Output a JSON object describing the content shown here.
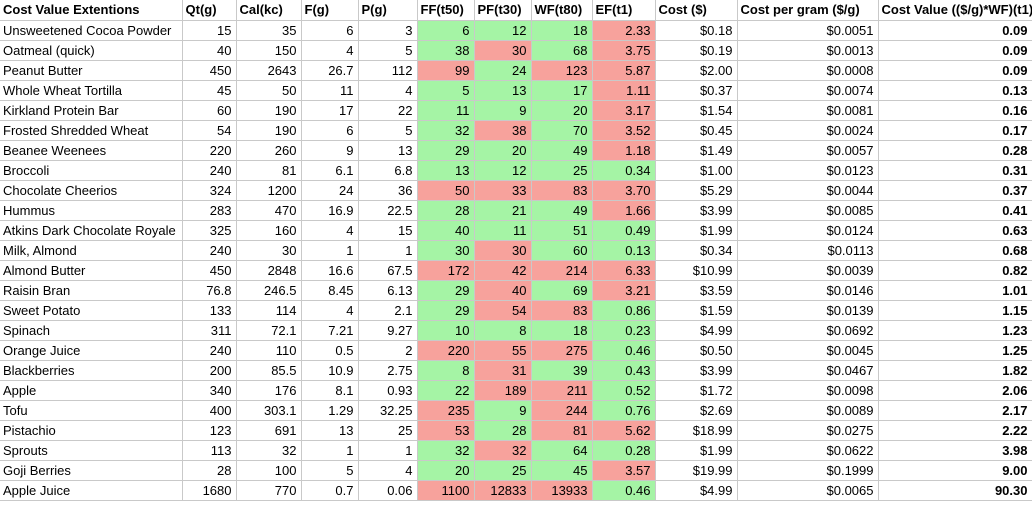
{
  "table": {
    "title": "Cost Value Extentions",
    "colors": {
      "good": "#a5f4a5",
      "bad": "#f7a29c",
      "gridline": "#c9c9c9"
    },
    "headers": [
      "Cost Value Extentions",
      "Qt(g)",
      "Cal(kc)",
      "F(g)",
      "P(g)",
      "FF(t50)",
      "PF(t30)",
      "WF(t80)",
      "EF(t1)",
      "Cost ($)",
      "Cost per gram ($/g)",
      "Cost Value (($/g)*WF)(t1)"
    ],
    "rows": [
      {
        "name": "Unsweetened Cocoa Powder",
        "qt": "15",
        "cal": "35",
        "f": "6",
        "p": "3",
        "ff": "6",
        "pf": "12",
        "wf": "18",
        "ef": "2.33",
        "cost": "$0.18",
        "cost_per_gram": "$0.0051",
        "cost_value": "0.09",
        "flags": "gggr"
      },
      {
        "name": "Oatmeal (quick)",
        "qt": "40",
        "cal": "150",
        "f": "4",
        "p": "5",
        "ff": "38",
        "pf": "30",
        "wf": "68",
        "ef": "3.75",
        "cost": "$0.19",
        "cost_per_gram": "$0.0013",
        "cost_value": "0.09",
        "flags": "grgr"
      },
      {
        "name": "Peanut Butter",
        "qt": "450",
        "cal": "2643",
        "f": "26.7",
        "p": "112",
        "ff": "99",
        "pf": "24",
        "wf": "123",
        "ef": "5.87",
        "cost": "$2.00",
        "cost_per_gram": "$0.0008",
        "cost_value": "0.09",
        "flags": "rgrr"
      },
      {
        "name": "Whole Wheat Tortilla",
        "qt": "45",
        "cal": "50",
        "f": "11",
        "p": "4",
        "ff": "5",
        "pf": "13",
        "wf": "17",
        "ef": "1.11",
        "cost": "$0.37",
        "cost_per_gram": "$0.0074",
        "cost_value": "0.13",
        "flags": "gggr"
      },
      {
        "name": "Kirkland Protein Bar",
        "qt": "60",
        "cal": "190",
        "f": "17",
        "p": "22",
        "ff": "11",
        "pf": "9",
        "wf": "20",
        "ef": "3.17",
        "cost": "$1.54",
        "cost_per_gram": "$0.0081",
        "cost_value": "0.16",
        "flags": "gggr"
      },
      {
        "name": "Frosted Shredded Wheat",
        "qt": "54",
        "cal": "190",
        "f": "6",
        "p": "5",
        "ff": "32",
        "pf": "38",
        "wf": "70",
        "ef": "3.52",
        "cost": "$0.45",
        "cost_per_gram": "$0.0024",
        "cost_value": "0.17",
        "flags": "grgr"
      },
      {
        "name": "Beanee Weenees",
        "qt": "220",
        "cal": "260",
        "f": "9",
        "p": "13",
        "ff": "29",
        "pf": "20",
        "wf": "49",
        "ef": "1.18",
        "cost": "$1.49",
        "cost_per_gram": "$0.0057",
        "cost_value": "0.28",
        "flags": "gggr"
      },
      {
        "name": "Broccoli",
        "qt": "240",
        "cal": "81",
        "f": "6.1",
        "p": "6.8",
        "ff": "13",
        "pf": "12",
        "wf": "25",
        "ef": "0.34",
        "cost": "$1.00",
        "cost_per_gram": "$0.0123",
        "cost_value": "0.31",
        "flags": "gggg"
      },
      {
        "name": "Chocolate Cheerios",
        "qt": "324",
        "cal": "1200",
        "f": "24",
        "p": "36",
        "ff": "50",
        "pf": "33",
        "wf": "83",
        "ef": "3.70",
        "cost": "$5.29",
        "cost_per_gram": "$0.0044",
        "cost_value": "0.37",
        "flags": "rrrr"
      },
      {
        "name": "Hummus",
        "qt": "283",
        "cal": "470",
        "f": "16.9",
        "p": "22.5",
        "ff": "28",
        "pf": "21",
        "wf": "49",
        "ef": "1.66",
        "cost": "$3.99",
        "cost_per_gram": "$0.0085",
        "cost_value": "0.41",
        "flags": "gggr"
      },
      {
        "name": "Atkins Dark Chocolate Royale",
        "qt": "325",
        "cal": "160",
        "f": "4",
        "p": "15",
        "ff": "40",
        "pf": "11",
        "wf": "51",
        "ef": "0.49",
        "cost": "$1.99",
        "cost_per_gram": "$0.0124",
        "cost_value": "0.63",
        "flags": "gggg"
      },
      {
        "name": "Milk, Almond",
        "qt": "240",
        "cal": "30",
        "f": "1",
        "p": "1",
        "ff": "30",
        "pf": "30",
        "wf": "60",
        "ef": "0.13",
        "cost": "$0.34",
        "cost_per_gram": "$0.0113",
        "cost_value": "0.68",
        "flags": "grgg"
      },
      {
        "name": "Almond Butter",
        "qt": "450",
        "cal": "2848",
        "f": "16.6",
        "p": "67.5",
        "ff": "172",
        "pf": "42",
        "wf": "214",
        "ef": "6.33",
        "cost": "$10.99",
        "cost_per_gram": "$0.0039",
        "cost_value": "0.82",
        "flags": "rrrr"
      },
      {
        "name": "Raisin Bran",
        "qt": "76.8",
        "cal": "246.5",
        "f": "8.45",
        "p": "6.13",
        "ff": "29",
        "pf": "40",
        "wf": "69",
        "ef": "3.21",
        "cost": "$3.59",
        "cost_per_gram": "$0.0146",
        "cost_value": "1.01",
        "flags": "grgr"
      },
      {
        "name": "Sweet Potato",
        "qt": "133",
        "cal": "114",
        "f": "4",
        "p": "2.1",
        "ff": "29",
        "pf": "54",
        "wf": "83",
        "ef": "0.86",
        "cost": "$1.59",
        "cost_per_gram": "$0.0139",
        "cost_value": "1.15",
        "flags": "grrg"
      },
      {
        "name": "Spinach",
        "qt": "311",
        "cal": "72.1",
        "f": "7.21",
        "p": "9.27",
        "ff": "10",
        "pf": "8",
        "wf": "18",
        "ef": "0.23",
        "cost": "$4.99",
        "cost_per_gram": "$0.0692",
        "cost_value": "1.23",
        "flags": "gggg"
      },
      {
        "name": "Orange Juice",
        "qt": "240",
        "cal": "110",
        "f": "0.5",
        "p": "2",
        "ff": "220",
        "pf": "55",
        "wf": "275",
        "ef": "0.46",
        "cost": "$0.50",
        "cost_per_gram": "$0.0045",
        "cost_value": "1.25",
        "flags": "rrrg"
      },
      {
        "name": "Blackberries",
        "qt": "200",
        "cal": "85.5",
        "f": "10.9",
        "p": "2.75",
        "ff": "8",
        "pf": "31",
        "wf": "39",
        "ef": "0.43",
        "cost": "$3.99",
        "cost_per_gram": "$0.0467",
        "cost_value": "1.82",
        "flags": "grgg"
      },
      {
        "name": "Apple",
        "qt": "340",
        "cal": "176",
        "f": "8.1",
        "p": "0.93",
        "ff": "22",
        "pf": "189",
        "wf": "211",
        "ef": "0.52",
        "cost": "$1.72",
        "cost_per_gram": "$0.0098",
        "cost_value": "2.06",
        "flags": "grrg"
      },
      {
        "name": "Tofu",
        "qt": "400",
        "cal": "303.1",
        "f": "1.29",
        "p": "32.25",
        "ff": "235",
        "pf": "9",
        "wf": "244",
        "ef": "0.76",
        "cost": "$2.69",
        "cost_per_gram": "$0.0089",
        "cost_value": "2.17",
        "flags": "rgrg"
      },
      {
        "name": "Pistachio",
        "qt": "123",
        "cal": "691",
        "f": "13",
        "p": "25",
        "ff": "53",
        "pf": "28",
        "wf": "81",
        "ef": "5.62",
        "cost": "$18.99",
        "cost_per_gram": "$0.0275",
        "cost_value": "2.22",
        "flags": "rgrr"
      },
      {
        "name": "Sprouts",
        "qt": "113",
        "cal": "32",
        "f": "1",
        "p": "1",
        "ff": "32",
        "pf": "32",
        "wf": "64",
        "ef": "0.28",
        "cost": "$1.99",
        "cost_per_gram": "$0.0622",
        "cost_value": "3.98",
        "flags": "grgg"
      },
      {
        "name": "Goji Berries",
        "qt": "28",
        "cal": "100",
        "f": "5",
        "p": "4",
        "ff": "20",
        "pf": "25",
        "wf": "45",
        "ef": "3.57",
        "cost": "$19.99",
        "cost_per_gram": "$0.1999",
        "cost_value": "9.00",
        "flags": "gggr"
      },
      {
        "name": "Apple Juice",
        "qt": "1680",
        "cal": "770",
        "f": "0.7",
        "p": "0.06",
        "ff": "1100",
        "pf": "12833",
        "wf": "13933",
        "ef": "0.46",
        "cost": "$4.99",
        "cost_per_gram": "$0.0065",
        "cost_value": "90.30",
        "flags": "rrrg"
      }
    ]
  }
}
